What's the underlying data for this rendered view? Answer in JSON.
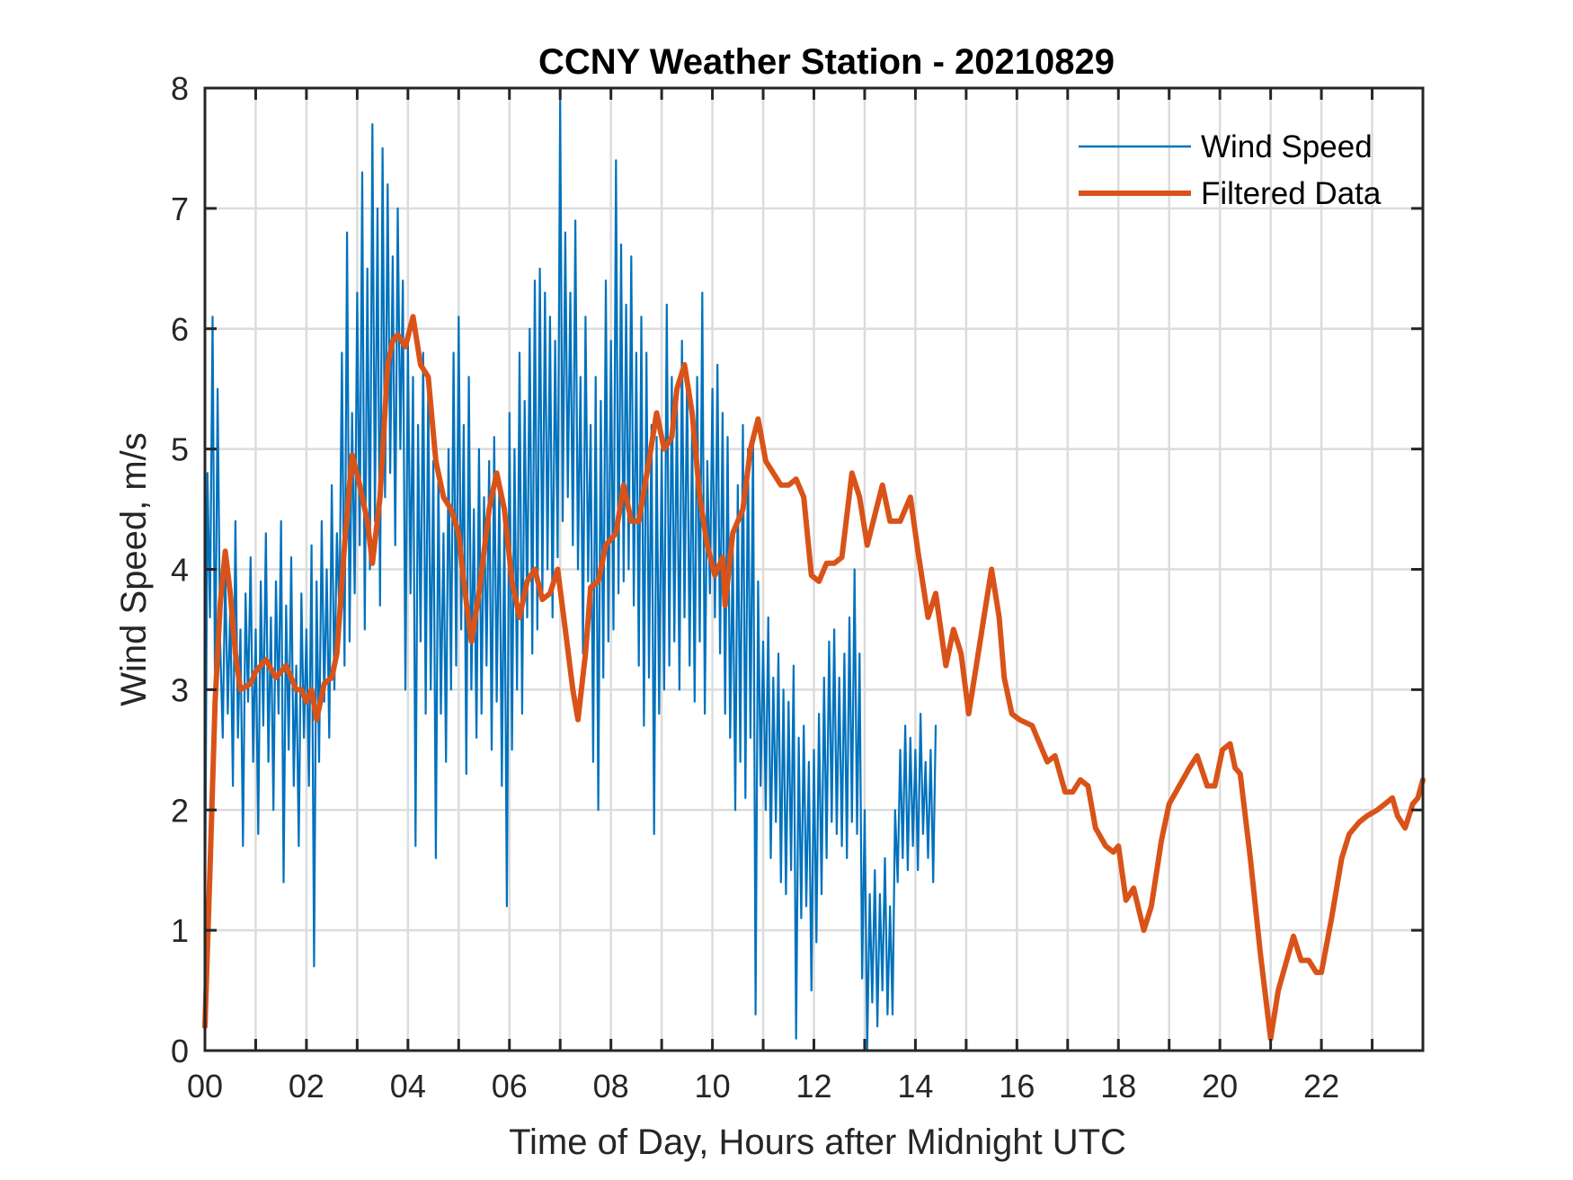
{
  "chart_data": {
    "type": "line",
    "title": "CCNY Weather Station - 20210829",
    "xlabel": "Time of Day, Hours after Midnight UTC",
    "ylabel": "Wind Speed, m/s",
    "xlim": [
      0,
      24
    ],
    "ylim": [
      0,
      8
    ],
    "x_ticks": [
      0,
      2,
      4,
      6,
      8,
      10,
      12,
      14,
      16,
      18,
      20,
      22
    ],
    "x_tick_labels": [
      "00",
      "02",
      "04",
      "06",
      "08",
      "10",
      "12",
      "14",
      "16",
      "18",
      "20",
      "22"
    ],
    "x_minor_ticks_hours": 1,
    "y_ticks": [
      0,
      1,
      2,
      3,
      4,
      5,
      6,
      7,
      8
    ],
    "y_tick_labels": [
      "0",
      "1",
      "2",
      "3",
      "4",
      "5",
      "6",
      "7",
      "8"
    ],
    "grid": true,
    "legend": {
      "placement": "top-right",
      "entries": [
        {
          "label": "Wind Speed",
          "series": "wind_speed"
        },
        {
          "label": "Filtered Data",
          "series": "filtered"
        }
      ]
    },
    "series": [
      {
        "name": "Wind Speed",
        "key": "wind_speed",
        "color": "#0072BD",
        "x_start": 0,
        "x_step": 0.05,
        "values": [
          0.9,
          4.8,
          3.6,
          6.1,
          2.9,
          5.5,
          3.4,
          2.6,
          4.0,
          2.8,
          3.7,
          2.2,
          4.4,
          2.6,
          3.5,
          1.7,
          3.8,
          2.9,
          4.1,
          2.4,
          3.5,
          1.8,
          3.9,
          2.7,
          4.3,
          2.4,
          3.6,
          2.0,
          3.9,
          2.8,
          4.4,
          1.4,
          3.7,
          2.5,
          4.1,
          2.2,
          3.2,
          1.7,
          3.8,
          2.6,
          3.5,
          2.2,
          4.2,
          0.7,
          3.9,
          2.4,
          4.4,
          2.9,
          4.0,
          2.6,
          4.7,
          3.0,
          4.3,
          3.6,
          5.8,
          3.2,
          6.8,
          3.4,
          5.3,
          3.8,
          6.3,
          4.2,
          7.3,
          3.5,
          6.5,
          4.0,
          7.7,
          4.4,
          7.0,
          3.7,
          7.5,
          4.6,
          7.2,
          4.8,
          6.6,
          4.2,
          7.0,
          5.0,
          6.4,
          3.0,
          5.9,
          3.8,
          5.6,
          1.7,
          5.2,
          3.4,
          5.8,
          2.8,
          5.5,
          3.0,
          4.9,
          1.6,
          4.8,
          2.8,
          4.3,
          2.4,
          5.0,
          3.0,
          5.8,
          3.2,
          6.1,
          3.5,
          5.2,
          2.3,
          5.6,
          3.0,
          4.5,
          2.6,
          5.0,
          2.8,
          4.6,
          3.2,
          4.9,
          2.5,
          5.1,
          2.9,
          4.7,
          2.2,
          4.4,
          1.2,
          5.3,
          2.5,
          5.0,
          3.0,
          5.8,
          2.8,
          5.4,
          3.6,
          6.0,
          3.3,
          6.4,
          3.5,
          6.5,
          3.8,
          6.3,
          4.0,
          6.1,
          3.6,
          5.9,
          4.1,
          7.9,
          4.4,
          6.8,
          4.6,
          6.3,
          4.2,
          6.9,
          4.0,
          5.6,
          3.3,
          6.1,
          3.9,
          5.2,
          2.4,
          5.6,
          2.0,
          5.4,
          3.1,
          6.4,
          3.4,
          5.9,
          3.5,
          7.4,
          3.8,
          6.7,
          3.9,
          6.2,
          4.0,
          6.6,
          3.7,
          5.8,
          3.2,
          6.1,
          2.7,
          5.8,
          3.1,
          5.2,
          1.8,
          5.1,
          2.8,
          5.0,
          3.0,
          6.2,
          3.2,
          5.6,
          3.4,
          5.4,
          3.0,
          5.9,
          3.6,
          5.6,
          3.2,
          5.2,
          2.9,
          5.6,
          3.4,
          6.3,
          2.8,
          4.9,
          3.8,
          5.5,
          3.6,
          5.7,
          3.3,
          5.3,
          2.8,
          5.1,
          2.6,
          4.2,
          2.0,
          4.7,
          2.4,
          5.2,
          2.1,
          5.0,
          2.6,
          5.1,
          0.3,
          3.9,
          2.2,
          3.4,
          2.0,
          3.6,
          1.6,
          3.1,
          1.9,
          3.3,
          1.4,
          3.0,
          1.3,
          2.9,
          1.5,
          3.2,
          0.1,
          2.6,
          1.1,
          2.7,
          1.2,
          2.4,
          0.5,
          2.5,
          0.9,
          2.8,
          1.3,
          3.1,
          1.6,
          3.4,
          1.9,
          3.5,
          1.8,
          3.1,
          1.7,
          3.3,
          1.6,
          3.6,
          1.9,
          4.0,
          1.8,
          3.3,
          0.6,
          2.0,
          0.0,
          1.3,
          0.4,
          1.5,
          0.2,
          1.3,
          0.5,
          1.6,
          0.3,
          1.2,
          0.3,
          2.0,
          1.4,
          2.5,
          1.6,
          2.7,
          1.5,
          2.6,
          1.7,
          2.5,
          1.5,
          2.8,
          1.8,
          2.4,
          1.6,
          2.5,
          1.4,
          2.7
        ]
      },
      {
        "name": "Filtered Data",
        "key": "filtered",
        "color": "#D95319",
        "x": [
          0.0,
          0.1,
          0.2,
          0.3,
          0.4,
          0.5,
          0.6,
          0.7,
          0.9,
          1.0,
          1.2,
          1.4,
          1.6,
          1.8,
          1.9,
          2.0,
          2.1,
          2.2,
          2.35,
          2.5,
          2.6,
          2.75,
          2.9,
          3.05,
          3.2,
          3.3,
          3.45,
          3.6,
          3.7,
          3.8,
          3.95,
          4.1,
          4.25,
          4.4,
          4.55,
          4.7,
          4.85,
          5.0,
          5.1,
          5.25,
          5.4,
          5.6,
          5.75,
          5.9,
          6.05,
          6.2,
          6.35,
          6.5,
          6.65,
          6.8,
          6.95,
          7.1,
          7.25,
          7.35,
          7.5,
          7.6,
          7.75,
          7.9,
          8.1,
          8.25,
          8.4,
          8.55,
          8.75,
          8.9,
          9.05,
          9.2,
          9.3,
          9.45,
          9.6,
          9.75,
          9.9,
          10.05,
          10.2,
          10.25,
          10.4,
          10.6,
          10.75,
          10.9,
          11.05,
          11.2,
          11.35,
          11.5,
          11.65,
          11.8,
          11.95,
          12.1,
          12.25,
          12.4,
          12.55,
          12.75,
          12.9,
          13.05,
          13.2,
          13.35,
          13.5,
          13.7,
          13.9,
          14.05,
          14.25,
          14.4,
          14.6,
          14.75,
          14.9,
          15.05,
          15.2,
          15.35,
          15.5,
          15.65,
          15.75,
          15.9,
          16.05,
          16.3,
          16.45,
          16.6,
          16.75,
          16.95,
          17.1,
          17.25,
          17.4,
          17.55,
          17.75,
          17.9,
          18.0,
          18.15,
          18.3,
          18.5,
          18.65,
          18.85,
          19.0,
          19.2,
          19.4,
          19.55,
          19.75,
          19.9,
          20.05,
          20.2,
          20.3,
          20.4,
          20.6,
          20.8,
          21.0,
          21.15,
          21.35,
          21.45,
          21.6,
          21.75,
          21.9,
          22.0,
          22.2,
          22.4,
          22.55,
          22.75,
          22.9,
          23.1,
          23.25,
          23.4,
          23.5,
          23.65,
          23.8,
          23.9,
          24.0
        ],
        "values": [
          0.2,
          1.5,
          2.9,
          3.7,
          4.15,
          3.8,
          3.3,
          3.0,
          3.05,
          3.15,
          3.25,
          3.1,
          3.2,
          3.0,
          3.0,
          2.9,
          3.0,
          2.75,
          3.05,
          3.1,
          3.3,
          4.2,
          4.95,
          4.7,
          4.4,
          4.05,
          4.6,
          5.7,
          5.9,
          5.95,
          5.85,
          6.1,
          5.7,
          5.6,
          4.9,
          4.6,
          4.5,
          4.3,
          3.9,
          3.4,
          3.8,
          4.5,
          4.8,
          4.5,
          3.9,
          3.6,
          3.9,
          4.0,
          3.75,
          3.8,
          4.0,
          3.5,
          3.0,
          2.75,
          3.3,
          3.85,
          3.9,
          4.2,
          4.3,
          4.7,
          4.4,
          4.4,
          4.9,
          5.3,
          5.0,
          5.1,
          5.5,
          5.7,
          5.3,
          4.6,
          4.2,
          3.95,
          4.1,
          3.7,
          4.3,
          4.5,
          5.0,
          5.25,
          4.9,
          4.8,
          4.7,
          4.7,
          4.75,
          4.6,
          3.95,
          3.9,
          4.05,
          4.05,
          4.1,
          4.8,
          4.6,
          4.2,
          4.45,
          4.7,
          4.4,
          4.4,
          4.6,
          4.15,
          3.6,
          3.8,
          3.2,
          3.5,
          3.3,
          2.8,
          3.2,
          3.6,
          4.0,
          3.6,
          3.1,
          2.8,
          2.75,
          2.7,
          2.55,
          2.4,
          2.45,
          2.15,
          2.15,
          2.25,
          2.2,
          1.85,
          1.7,
          1.65,
          1.7,
          1.25,
          1.35,
          1.0,
          1.2,
          1.75,
          2.05,
          2.2,
          2.35,
          2.45,
          2.2,
          2.2,
          2.5,
          2.55,
          2.35,
          2.3,
          1.6,
          0.8,
          0.1,
          0.5,
          0.8,
          0.95,
          0.75,
          0.75,
          0.65,
          0.65,
          1.1,
          1.6,
          1.8,
          1.9,
          1.95,
          2.0,
          2.05,
          2.1,
          1.95,
          1.85,
          2.05,
          2.1,
          2.25
        ]
      }
    ]
  }
}
